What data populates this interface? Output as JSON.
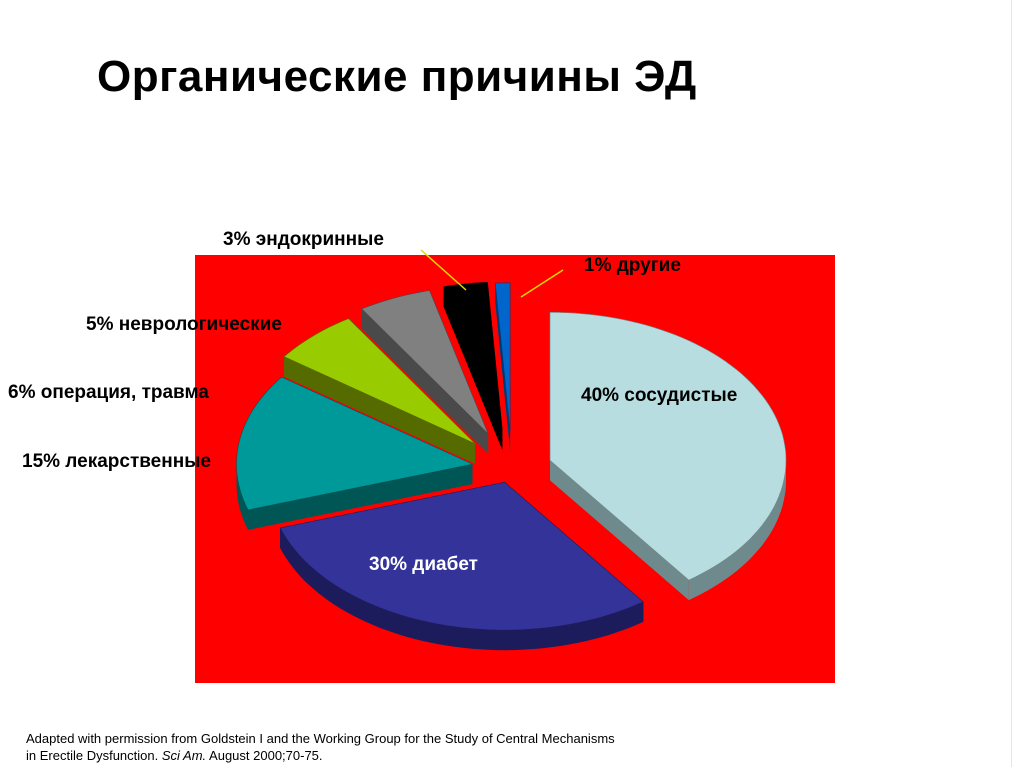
{
  "slide": {
    "title": "Органические причины ЭД",
    "source_line1": "Adapted with permission from Goldstein I and the Working Group for the Study of Central Mechanisms",
    "source_line2_a": "in Erectile Dysfunction. ",
    "source_line2_journal": "Sci Am.",
    "source_line2_b": " August 2000;70-75."
  },
  "chart_data": {
    "type": "pie",
    "style": "3d-exploded",
    "background_color": "#ff0000",
    "slices": [
      {
        "label": "40% сосудистые",
        "value": 40,
        "color": "#b8dde0",
        "side": "#6f8a8c"
      },
      {
        "label": "30% диабет",
        "value": 30,
        "color": "#333399",
        "side": "#1c1c5c"
      },
      {
        "label": "15% лекарственные",
        "value": 15,
        "color": "#009999",
        "side": "#005555"
      },
      {
        "label": "6% операция, травма",
        "value": 6,
        "color": "#99cc00",
        "side": "#556b00"
      },
      {
        "label": "5% неврологические",
        "value": 5,
        "color": "#808080",
        "side": "#4a4a4a"
      },
      {
        "label": "3% эндокринные",
        "value": 3,
        "color": "#000000",
        "side": "#000000"
      },
      {
        "label": "1% другие",
        "value": 1,
        "color": "#0066cc",
        "side": "#003a75"
      }
    ]
  }
}
